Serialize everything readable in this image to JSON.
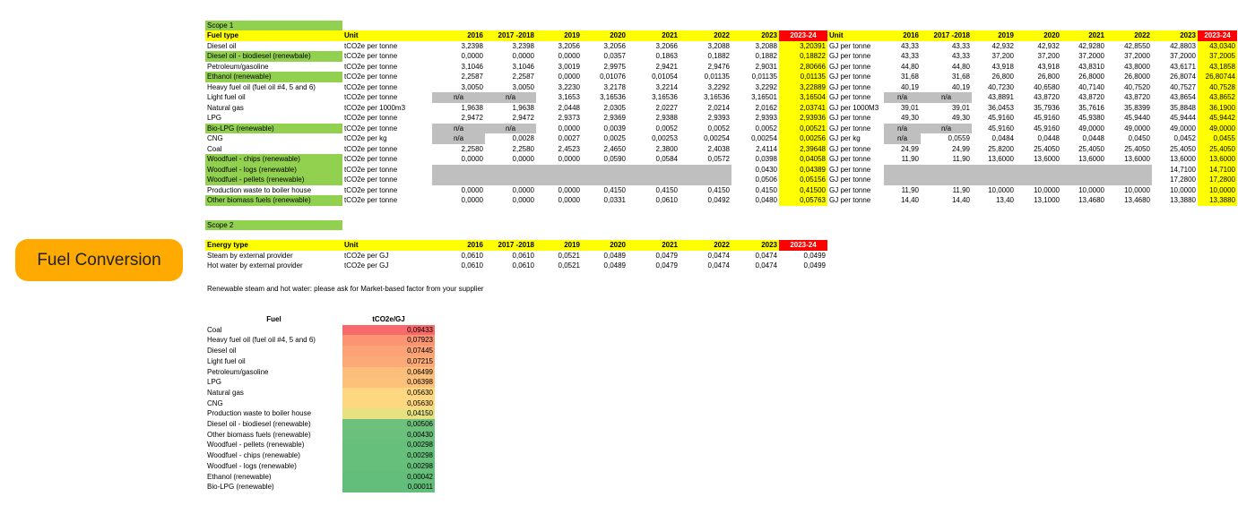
{
  "badge": "Fuel Conversion",
  "scope1": {
    "label": "Scope 1",
    "header": [
      "Fuel type",
      "Unit",
      "2016",
      "2017 -2018",
      "2019",
      "2020",
      "2021",
      "2022",
      "2023",
      "2023-24",
      "Unit",
      "2016",
      "2017 -2018",
      "2019",
      "2020",
      "2021",
      "2022",
      "2023",
      "2023-24"
    ],
    "rows": [
      {
        "name": "Diesel oil",
        "green": false,
        "unit": "tCO2e per tonne",
        "v": [
          "3,2398",
          "3,2398",
          "3,2056",
          "3,2056",
          "3,2066",
          "3,2088",
          "3,2088"
        ],
        "cur": "3,20391",
        "unit2": "GJ per tonne",
        "g": [
          "43,33",
          "43,33",
          "42,932",
          "42,932",
          "42,9280",
          "42,8550",
          "42,8803"
        ],
        "gcur": "43,0340"
      },
      {
        "name": "Diesel oil - biodiesel (renewbale)",
        "green": true,
        "unit": "tCO2e per tonne",
        "v": [
          "0,0000",
          "0,0000",
          "0,0000",
          "0,0357",
          "0,1863",
          "0,1882",
          "0,1882"
        ],
        "cur": "0,18822",
        "unit2": "GJ per tonne",
        "g": [
          "43,33",
          "43,33",
          "37,200",
          "37,200",
          "37,2000",
          "37,2000",
          "37,2000"
        ],
        "gcur": "37,2005"
      },
      {
        "name": "Petroleum/gasoline",
        "green": false,
        "unit": "tCO2e per tonne",
        "v": [
          "3,1046",
          "3,1046",
          "3,0019",
          "2,9975",
          "2,9421",
          "2,9476",
          "2,9031"
        ],
        "cur": "2,80666",
        "unit2": "GJ per tonne",
        "g": [
          "44,80",
          "44,80",
          "43,918",
          "43,918",
          "43,8310",
          "43,8000",
          "43,6171"
        ],
        "gcur": "43,1858"
      },
      {
        "name": "Ethanol (renewable)",
        "green": true,
        "unit": "tCO2e per tonne",
        "v": [
          "2,2587",
          "2,2587",
          "0,0000",
          "0,01076",
          "0,01054",
          "0,01135",
          "0,01135"
        ],
        "cur": "0,01135",
        "unit2": "GJ per tonne",
        "g": [
          "31,68",
          "31,68",
          "26,800",
          "26,800",
          "26,8000",
          "26,8000",
          "26,8074"
        ],
        "gcur": "26,80744"
      },
      {
        "name": "Heavy fuel oil (fuel oil #4, 5 and 6)",
        "green": false,
        "unit": "tCO2e per tonne",
        "v": [
          "3,0050",
          "3,0050",
          "3,2230",
          "3,2178",
          "3,2214",
          "3,2292",
          "3,2292"
        ],
        "cur": "3,22889",
        "unit2": "GJ per tonne",
        "g": [
          "40,19",
          "40,19",
          "40,7230",
          "40,6580",
          "40,7140",
          "40,7520",
          "40,7527"
        ],
        "gcur": "40,7528"
      },
      {
        "name": "Light fuel oil",
        "green": false,
        "unit": "tCO2e per tonne",
        "v": [
          "n/a",
          "n/a",
          "3,1653",
          "3,16536",
          "3,16536",
          "3,16536",
          "3,16501"
        ],
        "vgray": [
          0,
          1
        ],
        "cur": "3,16504",
        "unit2": "GJ per tonne",
        "g": [
          "n/a",
          "n/a",
          "43,8891",
          "43,8720",
          "43,8720",
          "43,8720",
          "43,8654"
        ],
        "ggray": [
          0,
          1
        ],
        "gcur": "43,8652"
      },
      {
        "name": "Natural gas",
        "green": false,
        "unit": "tCO2e per 1000m3",
        "v": [
          "1,9638",
          "1,9638",
          "2,0448",
          "2,0305",
          "2,0227",
          "2,0214",
          "2,0162"
        ],
        "cur": "2,03741",
        "unit2": "GJ per 1000M3",
        "g": [
          "39,01",
          "39,01",
          "36,0453",
          "35,7936",
          "35,7616",
          "35,8399",
          "35,8848"
        ],
        "gcur": "36,1900"
      },
      {
        "name": "LPG",
        "green": false,
        "unit": "tCO2e per tonne",
        "v": [
          "2,9472",
          "2,9472",
          "2,9373",
          "2,9369",
          "2,9388",
          "2,9393",
          "2,9393"
        ],
        "cur": "2,93936",
        "unit2": "GJ per tonne",
        "g": [
          "49,30",
          "49,30",
          "45,9160",
          "45,9160",
          "45,9380",
          "45,9440",
          "45,9444"
        ],
        "gcur": "45,9442"
      },
      {
        "name": "Bio-LPG (renewable)",
        "green": true,
        "unit": "tCO2e per tonne",
        "v": [
          "n/a",
          "n/a",
          "0,0000",
          "0,0039",
          "0,0052",
          "0,0052",
          "0,0052"
        ],
        "vgray": [
          0,
          1
        ],
        "cur": "0,00521",
        "unit2": "GJ per tonne",
        "g": [
          "n/a",
          "n/a",
          "45,9160",
          "45,9160",
          "49,0000",
          "49,0000",
          "49,0000"
        ],
        "ggray": [
          0,
          1
        ],
        "gcur": "49,0000"
      },
      {
        "name": "CNG",
        "green": false,
        "unit": "tCO2e per kg",
        "v": [
          "n/a",
          "0,0028",
          "0,0027",
          "0,0025",
          "0,00253",
          "0,00254",
          "0,00254"
        ],
        "vgray": [
          0
        ],
        "cur": "0,00256",
        "unit2": "GJ per kg",
        "g": [
          "n/a",
          "0,0559",
          "0,0484",
          "0,0448",
          "0,0448",
          "0,0450",
          "0,0452"
        ],
        "ggray": [
          0
        ],
        "gcur": "0,0455"
      },
      {
        "name": "Coal",
        "green": false,
        "unit": "tCO2e per tonne",
        "v": [
          "2,2580",
          "2,2580",
          "2,4523",
          "2,4650",
          "2,3800",
          "2,4038",
          "2,4114"
        ],
        "cur": "2,39648",
        "unit2": "GJ per tonne",
        "g": [
          "24,99",
          "24,99",
          "25,8200",
          "25,4050",
          "25,4050",
          "25,4050",
          "25,4050"
        ],
        "gcur": "25,4050"
      },
      {
        "name": "Woodfuel - chips (renewable)",
        "green": true,
        "unit": "tCO2e per tonne",
        "v": [
          "0,0000",
          "0,0000",
          "0,0000",
          "0,0590",
          "0,0584",
          "0,0572",
          "0,0398"
        ],
        "cur": "0,04058",
        "unit2": "GJ per tonne",
        "g": [
          "11,90",
          "11,90",
          "13,6000",
          "13,6000",
          "13,6000",
          "13,6000",
          "13,6000"
        ],
        "gcur": "13,6000"
      },
      {
        "name": "Woodfuel - logs (renewable)",
        "green": true,
        "unit": "tCO2e per tonne",
        "v": [
          "",
          "",
          "",
          "",
          "",
          "",
          ""
        ],
        "vgray": [
          0,
          1,
          2,
          3,
          4,
          5
        ],
        "cur": "0,04389",
        "v2023": "0,0430",
        "unit2": "GJ per tonne",
        "g": [
          "",
          "",
          "",
          "",
          "",
          "",
          ""
        ],
        "ggray": [
          0,
          1,
          2,
          3,
          4,
          5
        ],
        "g2023": "14,7100",
        "gcur": "14,7100"
      },
      {
        "name": "Woodfuel - pellets (renewable)",
        "green": true,
        "unit": "tCO2e per tonne",
        "v": [
          "",
          "",
          "",
          "",
          "",
          "",
          ""
        ],
        "vgray": [
          0,
          1,
          2,
          3,
          4,
          5
        ],
        "cur": "0,05156",
        "v2023": "0,0506",
        "unit2": "GJ per tonne",
        "g": [
          "",
          "",
          "",
          "",
          "",
          "",
          ""
        ],
        "ggray": [
          0,
          1,
          2,
          3,
          4,
          5
        ],
        "g2023": "17,2800",
        "gcur": "17,2800"
      },
      {
        "name": "Production waste to boiler house",
        "green": false,
        "unit": "tCO2e per tonne",
        "v": [
          "0,0000",
          "0,0000",
          "0,0000",
          "0,4150",
          "0,4150",
          "0,4150",
          "0,4150"
        ],
        "cur": "0,41500",
        "unit2": "GJ per tonne",
        "g": [
          "11,90",
          "11,90",
          "10,0000",
          "10,0000",
          "10,0000",
          "10,0000",
          "10,0000"
        ],
        "gcur": "10,0000"
      },
      {
        "name": "Other biomass fuels (renewable)",
        "green": true,
        "unit": "tCO2e per tonne",
        "v": [
          "0,0000",
          "0,0000",
          "0,0000",
          "0,0331",
          "0,0610",
          "0,0492",
          "0,0480"
        ],
        "cur": "0,05763",
        "unit2": "GJ per tonne",
        "g": [
          "14,40",
          "14,40",
          "13,40",
          "13,1000",
          "13,4680",
          "13,4680",
          "13,3880"
        ],
        "gcur": "13,3880"
      }
    ]
  },
  "scope2": {
    "label": "Scope 2",
    "header": [
      "Energy  type",
      "Unit",
      "2016",
      "2017 -2018",
      "2019",
      "2020",
      "2021",
      "2022",
      "2023",
      "2023-24"
    ],
    "rows": [
      {
        "name": "Steam by external provider",
        "unit": "tCO2e per GJ",
        "v": [
          "0,0610",
          "0,0610",
          "0,0521",
          "0,0489",
          "0,0479",
          "0,0474",
          "0,0474",
          "0,0499"
        ]
      },
      {
        "name": "Hot water by external provider",
        "unit": "tCO2e per GJ",
        "v": [
          "0,0610",
          "0,0610",
          "0,0521",
          "0,0489",
          "0,0479",
          "0,0474",
          "0,0474",
          "0,0499"
        ]
      }
    ],
    "note": "Renewable steam and hot water: please ask for Market-based factor from your supplier"
  },
  "ranking": {
    "header": [
      "Fuel",
      "tCO2e/GJ"
    ],
    "rows": [
      {
        "name": "Coal",
        "value": "0,09433",
        "color": "#F8696B"
      },
      {
        "name": "Heavy fuel oil (fuel oil #4, 5 and 6)",
        "value": "0,07923",
        "color": "#FA9473"
      },
      {
        "name": "Diesel oil",
        "value": "0,07445",
        "color": "#FBA276"
      },
      {
        "name": "Light fuel oil",
        "value": "0,07215",
        "color": "#FBA977"
      },
      {
        "name": "Petroleum/gasoline",
        "value": "0,06499",
        "color": "#FCBE7B"
      },
      {
        "name": "LPG",
        "value": "0,06398",
        "color": "#FDC17C"
      },
      {
        "name": "Natural gas",
        "value": "0,05630",
        "color": "#FED880"
      },
      {
        "name": "CNG",
        "value": "0,05630",
        "color": "#FED880"
      },
      {
        "name": "Production waste to boiler house",
        "value": "0,04150",
        "color": "#E7E182"
      },
      {
        "name": "Diesel oil - biodiesel (renewable)",
        "value": "0,00506",
        "color": "#6DC17C"
      },
      {
        "name": "Other biomass fuels (renewable)",
        "value": "0,00430",
        "color": "#6BC07C"
      },
      {
        "name": "Woodfuel - pellets (renewable)",
        "value": "0,00298",
        "color": "#67BF7C"
      },
      {
        "name": "Woodfuel - chips (renewable)",
        "value": "0,00298",
        "color": "#67BF7C"
      },
      {
        "name": "Woodfuel - logs (renewable)",
        "value": "0,00298",
        "color": "#67BF7C"
      },
      {
        "name": "Ethanol (renewable)",
        "value": "0,00042",
        "color": "#64BE7B"
      },
      {
        "name": "Bio-LPG (renewable)",
        "value": "0,00011",
        "color": "#63BE7B"
      }
    ]
  }
}
